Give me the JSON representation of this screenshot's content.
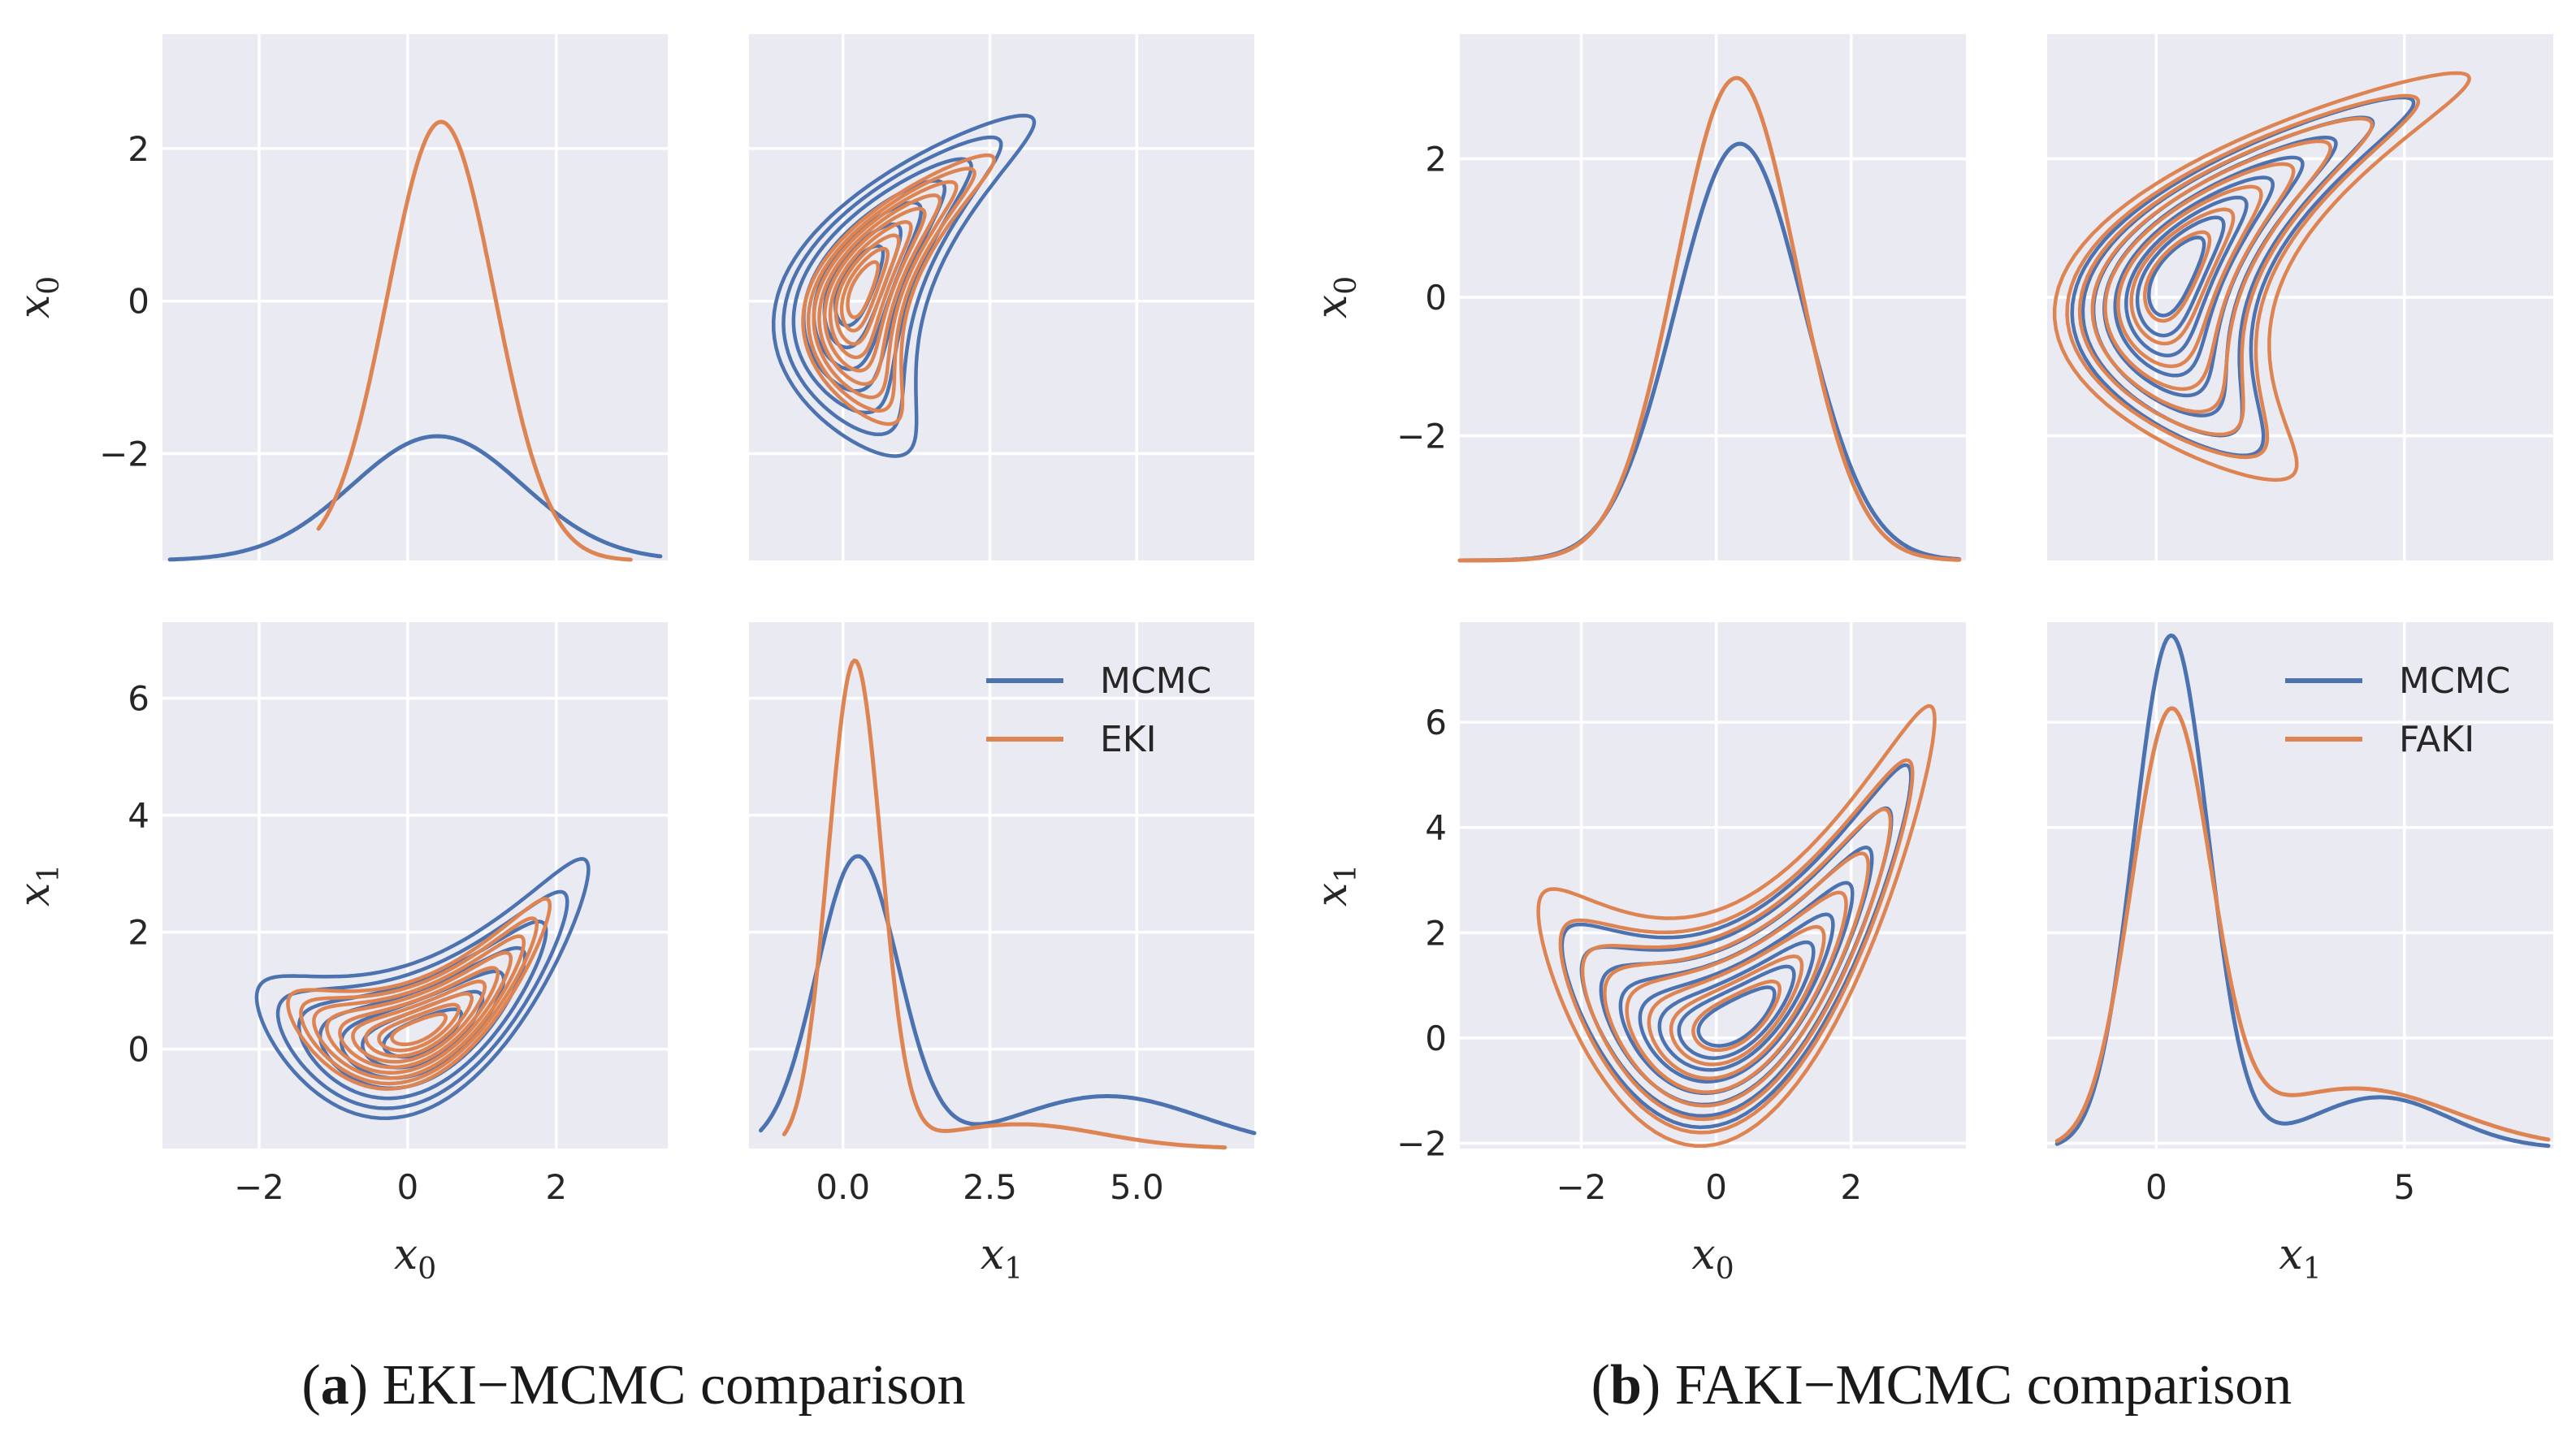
{
  "colors": {
    "mcmc": "#4c72b0",
    "alt": "#dd8452",
    "panel": "#eaeaf2",
    "grid": "#ffffff"
  },
  "chart_data": [
    {
      "id": "a",
      "type": "kde-pairplot",
      "caption_label": "a",
      "caption_text": " EKI−MCMC comparison",
      "series": [
        {
          "name": "MCMC"
        },
        {
          "name": "EKI"
        }
      ],
      "vars": [
        "x",
        "x"
      ],
      "var_subs": [
        "0",
        "1"
      ],
      "xlim_0": [
        -3.3,
        3.5
      ],
      "xlim_1": [
        -1.6,
        7.0
      ],
      "ylim_00": [
        -3.4,
        3.5
      ],
      "ylim_10": [
        -1.7,
        7.3
      ],
      "ticks": {
        "x0": [
          {
            "v": -2,
            "t": "−2"
          },
          {
            "v": 0,
            "t": "0"
          },
          {
            "v": 2,
            "t": "2"
          }
        ],
        "x1": [
          {
            "v": 0.0,
            "t": "0.0"
          },
          {
            "v": 2.5,
            "t": "2.5"
          },
          {
            "v": 5.0,
            "t": "5.0"
          }
        ],
        "y00": [
          {
            "v": -2,
            "t": "−2"
          },
          {
            "v": 0,
            "t": "0"
          },
          {
            "v": 2,
            "t": "2"
          }
        ],
        "y10": [
          {
            "v": 0,
            "t": "0"
          },
          {
            "v": 2,
            "t": "2"
          },
          {
            "v": 4,
            "t": "4"
          },
          {
            "v": 6,
            "t": "6"
          }
        ]
      },
      "marg0": {
        "mcmc": {
          "mu": 0.4,
          "sd": 1.15,
          "peak": 0.85,
          "base": -3.4,
          "range": [
            -3.2,
            3.4
          ]
        },
        "alt": {
          "mu": 0.45,
          "sd": 0.72,
          "peak": 3.0,
          "base": -3.4,
          "range": [
            -1.2,
            3.0
          ]
        }
      },
      "marg1": {
        "mcmc": {
          "mu": 0.25,
          "sd": 0.7,
          "peak": 4.2,
          "tail": 0.18,
          "tail_mu": 4.5,
          "tail_sd": 1.6,
          "range": [
            -1.4,
            7.0
          ]
        },
        "alt": {
          "mu": 0.2,
          "sd": 0.45,
          "peak": 7.0,
          "tail": 0.05,
          "tail_mu": 3.0,
          "tail_sd": 1.4,
          "range": [
            -1.0,
            6.5
          ]
        }
      },
      "contour": {
        "mcmc": {
          "c0": 0.2,
          "c1": 0.15,
          "curv": 0.35,
          "s0": 0.95,
          "s1": 0.55,
          "levels": 7
        },
        "alt": {
          "c0": 0.15,
          "c1": 0.25,
          "curv": 0.42,
          "s0": 0.75,
          "s1": 0.38,
          "levels": 9
        }
      },
      "legend": {
        "position": "top-right of lower-right panel",
        "entries": [
          "MCMC",
          "EKI"
        ]
      }
    },
    {
      "id": "b",
      "type": "kde-pairplot",
      "caption_label": "b",
      "caption_text": " FAKI−MCMC comparison",
      "series": [
        {
          "name": "MCMC"
        },
        {
          "name": "FAKI"
        }
      ],
      "vars": [
        "x",
        "x"
      ],
      "var_subs": [
        "0",
        "1"
      ],
      "xlim_0": [
        -3.8,
        3.7
      ],
      "xlim_1": [
        -2.2,
        8.0
      ],
      "ylim_00": [
        -3.8,
        3.8
      ],
      "ylim_10": [
        -2.1,
        7.9
      ],
      "ticks": {
        "x0": [
          {
            "v": -2,
            "t": "−2"
          },
          {
            "v": 0,
            "t": "0"
          },
          {
            "v": 2,
            "t": "2"
          }
        ],
        "x1": [
          {
            "v": 0,
            "t": "0"
          },
          {
            "v": 5,
            "t": "5"
          }
        ],
        "y00": [
          {
            "v": -2,
            "t": "−2"
          },
          {
            "v": 0,
            "t": "0"
          },
          {
            "v": 2,
            "t": "2"
          }
        ],
        "y10": [
          {
            "v": -2,
            "t": "−2"
          },
          {
            "v": 0,
            "t": "0"
          },
          {
            "v": 2,
            "t": "2"
          },
          {
            "v": 4,
            "t": "4"
          },
          {
            "v": 6,
            "t": "6"
          }
        ]
      },
      "marg0": {
        "mcmc": {
          "mu": 0.35,
          "sd": 0.95,
          "peak": 2.85,
          "base": -3.8,
          "range": [
            -3.8,
            3.6
          ]
        },
        "alt": {
          "mu": 0.3,
          "sd": 0.9,
          "peak": 3.3,
          "base": -3.8,
          "range": [
            -3.8,
            3.6
          ]
        }
      },
      "marg1": {
        "mcmc": {
          "mu": 0.3,
          "sd": 0.75,
          "peak": 7.4,
          "tail": 0.1,
          "tail_mu": 4.5,
          "tail_sd": 1.4,
          "range": [
            -2.0,
            7.9
          ]
        },
        "alt": {
          "mu": 0.3,
          "sd": 0.8,
          "peak": 6.2,
          "tail": 0.14,
          "tail_mu": 4.0,
          "tail_sd": 2.0,
          "range": [
            -2.0,
            7.9
          ]
        }
      },
      "contour": {
        "mcmc": {
          "c0": 0.3,
          "c1": 0.2,
          "curv": 0.45,
          "s0": 1.1,
          "s1": 0.8,
          "levels": 8
        },
        "alt": {
          "c0": 0.3,
          "c1": 0.2,
          "curv": 0.45,
          "s0": 1.25,
          "s1": 0.95,
          "levels": 8
        }
      },
      "legend": {
        "position": "top-right of lower-right panel",
        "entries": [
          "MCMC",
          "FAKI"
        ]
      }
    }
  ]
}
